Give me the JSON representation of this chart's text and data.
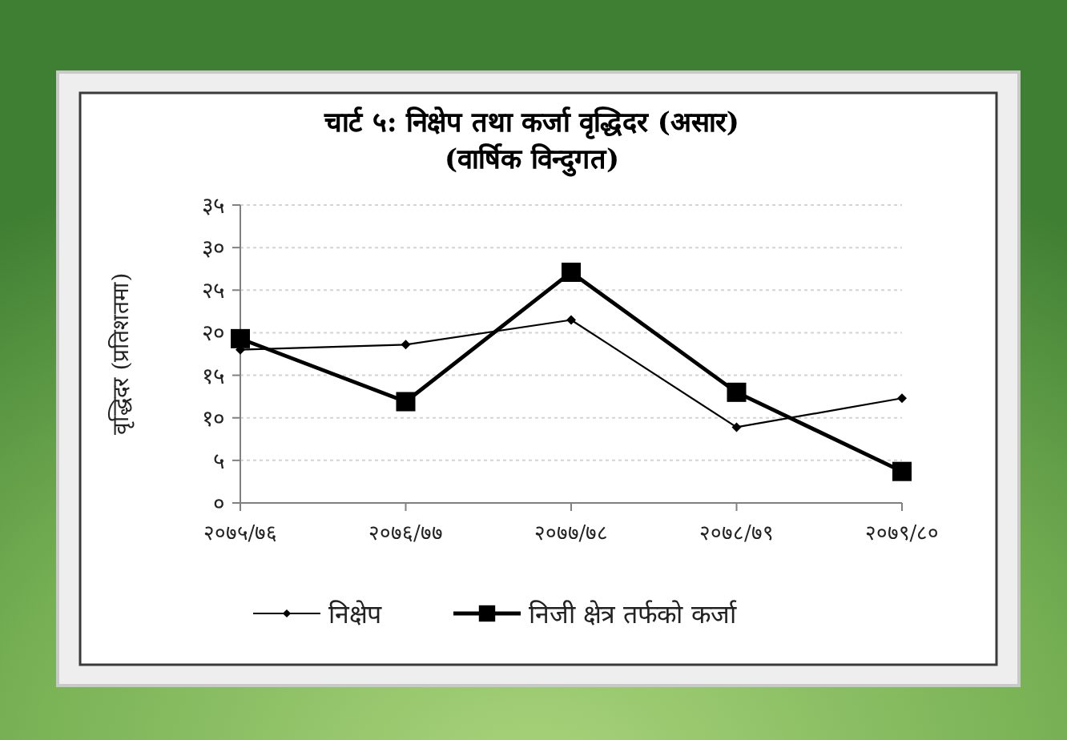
{
  "chart_data": {
    "type": "line",
    "title": "चार्ट ५: निक्षेप तथा कर्जा वृद्धिदर (असार)",
    "subtitle": "(वार्षिक विन्दुगत)",
    "ylabel": "वृद्धिदर (प्रतिशतमा)",
    "categories": [
      "२०७५/७६",
      "२०७६/७७",
      "२०७७/७८",
      "२०७८/७९",
      "२०७९/८०"
    ],
    "series": [
      {
        "name": "निक्षेप",
        "color": "#000000",
        "marker": "diamond",
        "values": [
          18.0,
          18.6,
          21.5,
          8.9,
          12.3
        ]
      },
      {
        "name": "निजी क्षेत्र तर्फको कर्जा",
        "color": "#000000",
        "marker": "square",
        "values": [
          19.3,
          11.9,
          27.1,
          13.0,
          3.7
        ]
      }
    ],
    "ylim": [
      0,
      35
    ],
    "yticks": [
      {
        "value": 0,
        "label": "०"
      },
      {
        "value": 5,
        "label": "५"
      },
      {
        "value": 10,
        "label": "१०"
      },
      {
        "value": 15,
        "label": "१५"
      },
      {
        "value": 20,
        "label": "२०"
      },
      {
        "value": 25,
        "label": "२५"
      },
      {
        "value": 30,
        "label": "३०"
      },
      {
        "value": 35,
        "label": "३५"
      }
    ],
    "grid": "y",
    "legend": "bottom"
  }
}
